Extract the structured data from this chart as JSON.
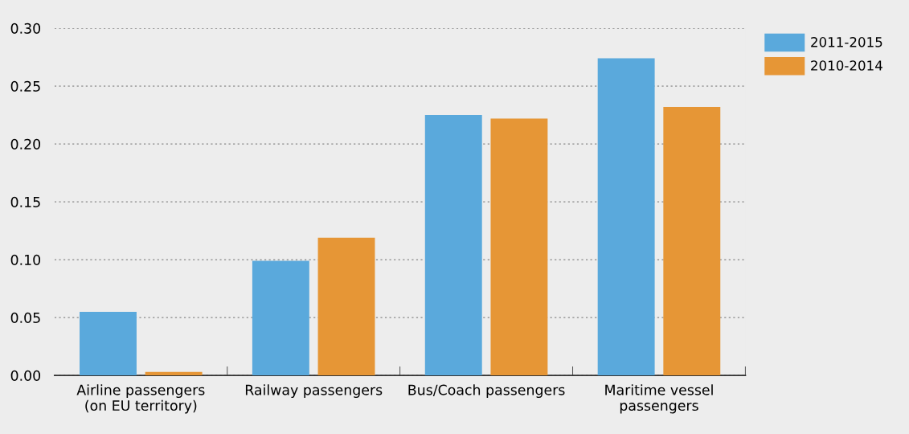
{
  "chart_data": {
    "type": "bar",
    "categories": [
      "Airline passengers\n(on EU territory)",
      "Railway passengers",
      "Bus/Coach passengers",
      "Maritime vessel\npassengers"
    ],
    "series": [
      {
        "name": "2011-2015",
        "color": "#5aa9dc",
        "values": [
          0.055,
          0.099,
          0.225,
          0.274
        ]
      },
      {
        "name": "2010-2014",
        "color": "#e69636",
        "values": [
          0.003,
          0.119,
          0.222,
          0.232
        ]
      }
    ],
    "ylim": [
      0,
      0.3
    ],
    "yticks": [
      {
        "value": 0,
        "label": "0.00"
      },
      {
        "value": 0.05,
        "label": "0.05"
      },
      {
        "value": 0.1,
        "label": "0.10"
      },
      {
        "value": 0.15,
        "label": "0.15"
      },
      {
        "value": 0.2,
        "label": "0.20"
      },
      {
        "value": 0.25,
        "label": "0.25"
      },
      {
        "value": 0.3,
        "label": "0.30"
      }
    ],
    "grid": "y",
    "legend": "top right"
  }
}
